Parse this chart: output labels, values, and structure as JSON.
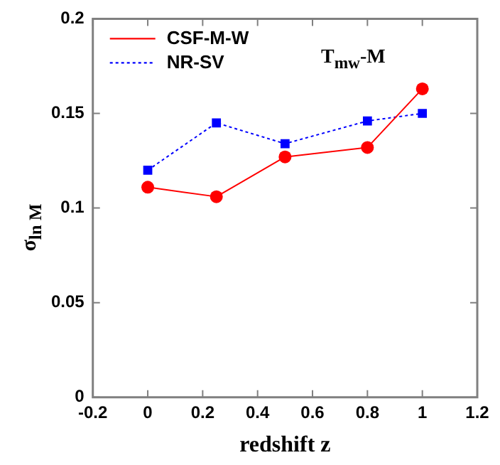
{
  "chart_data": {
    "type": "line",
    "xlabel": "redshift z",
    "ylabel": "σ$_{ln M}$",
    "annotations": [
      "T$_{mw}$-M"
    ],
    "xlim": [
      -0.2,
      1.2
    ],
    "xticks": [
      -0.2,
      0,
      0.2,
      0.4,
      0.6,
      0.8,
      1,
      1.2
    ],
    "ylim": [
      0,
      0.2
    ],
    "yticks": [
      0,
      0.05,
      0.1,
      0.15,
      0.2
    ],
    "x": [
      0,
      0.25,
      0.5,
      0.8,
      1
    ],
    "grid": false,
    "legend": "top left",
    "series": [
      {
        "name": "CSF-M-W",
        "color": "#ff0000",
        "values": [
          0.111,
          0.106,
          0.127,
          0.132,
          0.163
        ],
        "marker": "circle",
        "line_style": "solid"
      },
      {
        "name": "NR-SV",
        "color": "#0000ff",
        "values": [
          0.12,
          0.145,
          0.134,
          0.146,
          0.15
        ],
        "marker": "square",
        "line_style": "dotted"
      }
    ]
  }
}
